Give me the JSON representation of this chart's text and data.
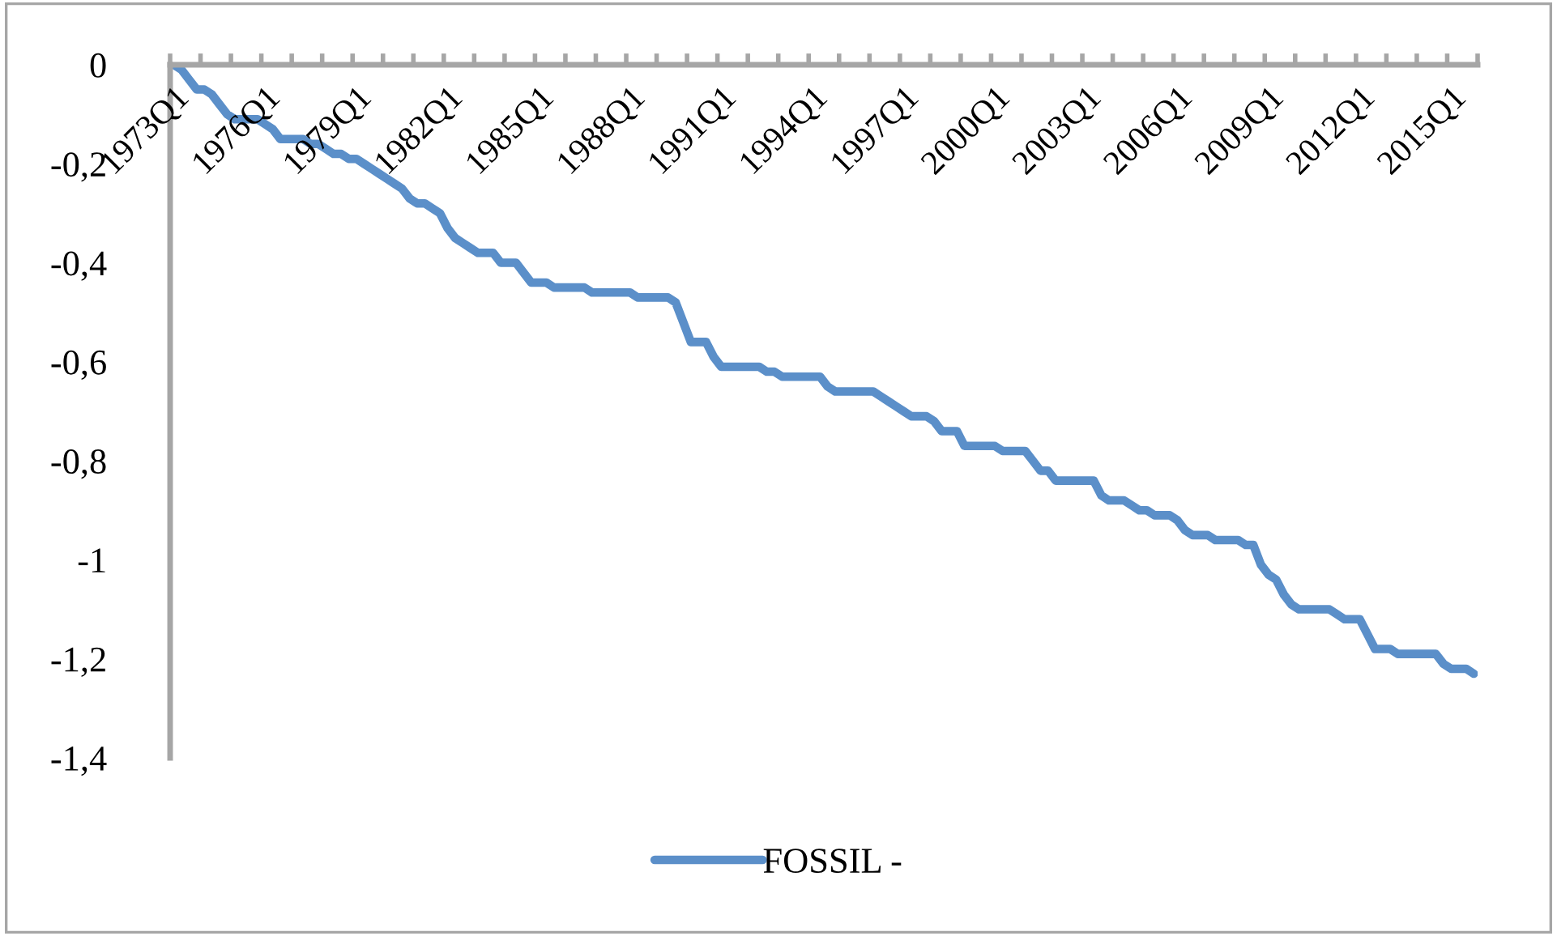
{
  "chart_data": {
    "type": "line",
    "categories": [
      "1973Q1",
      null,
      null,
      null,
      null,
      null,
      null,
      null,
      null,
      null,
      null,
      null,
      "1976Q1",
      null,
      null,
      null,
      null,
      null,
      null,
      null,
      null,
      null,
      null,
      null,
      "1979Q1",
      null,
      null,
      null,
      null,
      null,
      null,
      null,
      null,
      null,
      null,
      null,
      "1982Q1",
      null,
      null,
      null,
      null,
      null,
      null,
      null,
      null,
      null,
      null,
      null,
      "1985Q1",
      null,
      null,
      null,
      null,
      null,
      null,
      null,
      null,
      null,
      null,
      null,
      "1988Q1",
      null,
      null,
      null,
      null,
      null,
      null,
      null,
      null,
      null,
      null,
      null,
      "1991Q1",
      null,
      null,
      null,
      null,
      null,
      null,
      null,
      null,
      null,
      null,
      null,
      "1994Q1",
      null,
      null,
      null,
      null,
      null,
      null,
      null,
      null,
      null,
      null,
      null,
      "1997Q1",
      null,
      null,
      null,
      null,
      null,
      null,
      null,
      null,
      null,
      null,
      null,
      "2000Q1",
      null,
      null,
      null,
      null,
      null,
      null,
      null,
      null,
      null,
      null,
      null,
      "2003Q1",
      null,
      null,
      null,
      null,
      null,
      null,
      null,
      null,
      null,
      null,
      null,
      "2006Q1",
      null,
      null,
      null,
      null,
      null,
      null,
      null,
      null,
      null,
      null,
      null,
      "2009Q1",
      null,
      null,
      null,
      null,
      null,
      null,
      null,
      null,
      null,
      null,
      null,
      "2012Q1",
      null,
      null,
      null,
      null,
      null,
      null,
      null,
      null,
      null,
      null,
      null,
      "2015Q1",
      null,
      null,
      null
    ],
    "series": [
      {
        "name": "FOSSIL -",
        "color": "#5b8fc9",
        "values": [
          0,
          -0.01,
          -0.03,
          -0.05,
          -0.05,
          -0.06,
          -0.08,
          -0.1,
          -0.11,
          -0.11,
          -0.11,
          -0.11,
          -0.12,
          -0.13,
          -0.15,
          -0.15,
          -0.15,
          -0.15,
          -0.16,
          -0.16,
          -0.17,
          -0.18,
          -0.18,
          -0.19,
          -0.19,
          -0.2,
          -0.21,
          -0.22,
          -0.23,
          -0.24,
          -0.25,
          -0.27,
          -0.28,
          -0.28,
          -0.29,
          -0.3,
          -0.33,
          -0.35,
          -0.36,
          -0.37,
          -0.38,
          -0.38,
          -0.38,
          -0.4,
          -0.4,
          -0.4,
          -0.42,
          -0.44,
          -0.44,
          -0.44,
          -0.45,
          -0.45,
          -0.45,
          -0.45,
          -0.45,
          -0.46,
          -0.46,
          -0.46,
          -0.46,
          -0.46,
          -0.46,
          -0.47,
          -0.47,
          -0.47,
          -0.47,
          -0.47,
          -0.48,
          -0.52,
          -0.56,
          -0.56,
          -0.56,
          -0.59,
          -0.61,
          -0.61,
          -0.61,
          -0.61,
          -0.61,
          -0.61,
          -0.62,
          -0.62,
          -0.63,
          -0.63,
          -0.63,
          -0.63,
          -0.63,
          -0.63,
          -0.65,
          -0.66,
          -0.66,
          -0.66,
          -0.66,
          -0.66,
          -0.66,
          -0.67,
          -0.68,
          -0.69,
          -0.7,
          -0.71,
          -0.71,
          -0.71,
          -0.72,
          -0.74,
          -0.74,
          -0.74,
          -0.77,
          -0.77,
          -0.77,
          -0.77,
          -0.77,
          -0.78,
          -0.78,
          -0.78,
          -0.78,
          -0.8,
          -0.82,
          -0.82,
          -0.84,
          -0.84,
          -0.84,
          -0.84,
          -0.84,
          -0.84,
          -0.87,
          -0.88,
          -0.88,
          -0.88,
          -0.89,
          -0.9,
          -0.9,
          -0.91,
          -0.91,
          -0.91,
          -0.92,
          -0.94,
          -0.95,
          -0.95,
          -0.95,
          -0.96,
          -0.96,
          -0.96,
          -0.96,
          -0.97,
          -0.97,
          -1.01,
          -1.03,
          -1.04,
          -1.07,
          -1.09,
          -1.1,
          -1.1,
          -1.1,
          -1.1,
          -1.1,
          -1.11,
          -1.12,
          -1.12,
          -1.12,
          -1.15,
          -1.18,
          -1.18,
          -1.18,
          -1.19,
          -1.19,
          -1.19,
          -1.19,
          -1.19,
          -1.19,
          -1.21,
          -1.22,
          -1.22,
          -1.22,
          -1.23
        ]
      }
    ],
    "ylim": [
      -1.4,
      0
    ],
    "yticks": [
      0,
      {
        "value": -0.2,
        "label": "-0,2"
      },
      {
        "value": -0.4,
        "label": "-0,4"
      },
      {
        "value": -0.6,
        "label": "-0,6"
      },
      {
        "value": -0.8,
        "label": "-0,8"
      },
      -1,
      {
        "value": -1.2,
        "label": "-1,2"
      },
      {
        "value": -1.4,
        "label": "-1,4"
      }
    ],
    "grid": false,
    "legend": "bottom",
    "marker": "none",
    "line_style": "solid"
  }
}
